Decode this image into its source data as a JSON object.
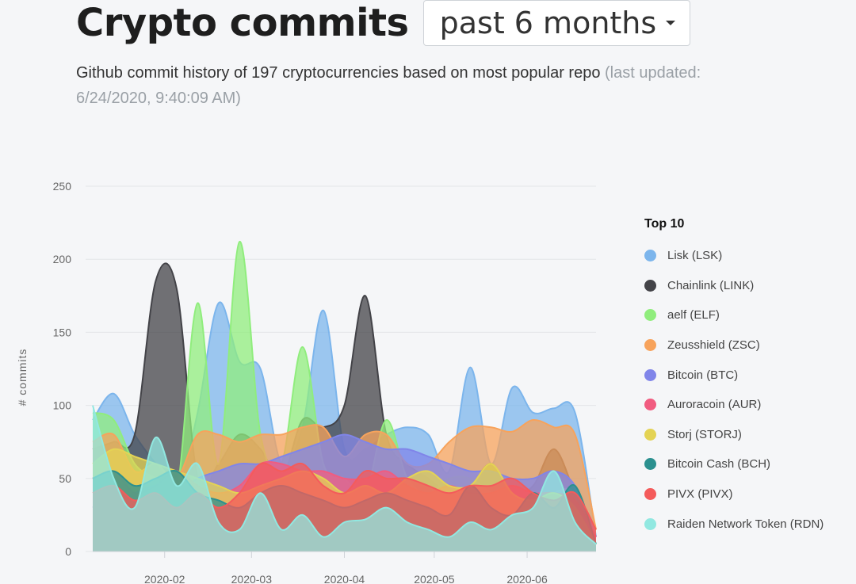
{
  "header": {
    "title": "Crypto commits",
    "period": "past 6 months",
    "subtitle_main": "Github commit history of 197 cryptocurrencies based on most popular repo",
    "subtitle_updated": "(last updated: 6/24/2020, 9:40:09 AM)"
  },
  "chart_data": {
    "type": "area",
    "ylabel": "# commits",
    "xlabel": "",
    "ylim": [
      0,
      250
    ],
    "yticks": [
      0,
      50,
      100,
      150,
      200,
      250
    ],
    "xlim": [
      "2020-01-08",
      "2020-06-24"
    ],
    "xticks": [
      "2020-02",
      "2020-03",
      "2020-04",
      "2020-05",
      "2020-06"
    ],
    "grid": true,
    "legend_title": "Top 10",
    "legend_position": "right",
    "x": [
      "2020-01-08",
      "2020-01-15",
      "2020-01-22",
      "2020-01-29",
      "2020-02-05",
      "2020-02-12",
      "2020-02-19",
      "2020-02-26",
      "2020-03-04",
      "2020-03-11",
      "2020-03-18",
      "2020-03-25",
      "2020-04-01",
      "2020-04-08",
      "2020-04-15",
      "2020-04-22",
      "2020-04-29",
      "2020-05-06",
      "2020-05-13",
      "2020-05-20",
      "2020-05-27",
      "2020-06-03",
      "2020-06-10",
      "2020-06-17",
      "2020-06-24"
    ],
    "series": [
      {
        "name": "Lisk (LSK)",
        "color": "#7cb5ec",
        "values": [
          90,
          108,
          80,
          60,
          40,
          95,
          170,
          130,
          125,
          60,
          85,
          165,
          70,
          70,
          80,
          85,
          80,
          55,
          126,
          60,
          112,
          95,
          98,
          95,
          10
        ]
      },
      {
        "name": "Chainlink (LINK)",
        "color": "#434348",
        "values": [
          70,
          75,
          80,
          185,
          180,
          50,
          60,
          80,
          70,
          50,
          90,
          85,
          100,
          175,
          80,
          60,
          50,
          40,
          45,
          60,
          40,
          45,
          70,
          40,
          10
        ]
      },
      {
        "name": "aelf (ELF)",
        "color": "#90ed7d",
        "values": [
          95,
          90,
          60,
          50,
          40,
          170,
          60,
          212,
          80,
          60,
          140,
          60,
          50,
          40,
          90,
          50,
          40,
          50,
          50,
          40,
          35,
          30,
          40,
          40,
          5
        ]
      },
      {
        "name": "Zeusshield (ZSC)",
        "color": "#f7a35c",
        "values": [
          75,
          80,
          55,
          60,
          50,
          80,
          80,
          75,
          80,
          80,
          85,
          85,
          65,
          80,
          80,
          60,
          60,
          75,
          85,
          85,
          82,
          90,
          85,
          80,
          15
        ]
      },
      {
        "name": "Bitcoin (BTC)",
        "color": "#8085e9",
        "values": [
          30,
          35,
          40,
          45,
          40,
          50,
          55,
          60,
          60,
          65,
          70,
          75,
          80,
          75,
          70,
          70,
          65,
          60,
          55,
          55,
          50,
          50,
          55,
          45,
          10
        ]
      },
      {
        "name": "Auroracoin (AUR)",
        "color": "#f15c80",
        "values": [
          50,
          55,
          40,
          45,
          55,
          45,
          40,
          45,
          60,
          60,
          55,
          55,
          50,
          50,
          55,
          45,
          40,
          45,
          40,
          40,
          45,
          40,
          40,
          35,
          10
        ]
      },
      {
        "name": "Storj (STORJ)",
        "color": "#e4d354",
        "values": [
          60,
          70,
          65,
          60,
          55,
          50,
          45,
          40,
          45,
          50,
          55,
          50,
          40,
          45,
          40,
          50,
          55,
          45,
          45,
          60,
          40,
          35,
          40,
          30,
          5
        ]
      },
      {
        "name": "Bitcoin Cash (BCH)",
        "color": "#2b908f",
        "values": [
          50,
          55,
          45,
          50,
          55,
          40,
          35,
          30,
          40,
          45,
          40,
          35,
          30,
          35,
          40,
          35,
          30,
          25,
          45,
          30,
          25,
          40,
          30,
          45,
          5
        ]
      },
      {
        "name": "PIVX (PIVX)",
        "color": "#f45b5b",
        "values": [
          40,
          45,
          35,
          40,
          30,
          40,
          30,
          40,
          60,
          55,
          60,
          45,
          40,
          55,
          50,
          50,
          45,
          40,
          45,
          45,
          50,
          40,
          35,
          40,
          15
        ]
      },
      {
        "name": "Raiden Network Token (RDN)",
        "color": "#91e8e1",
        "values": [
          100,
          50,
          30,
          78,
          45,
          60,
          20,
          15,
          40,
          15,
          25,
          10,
          20,
          22,
          30,
          20,
          15,
          10,
          20,
          15,
          25,
          30,
          55,
          20,
          5
        ]
      }
    ]
  }
}
